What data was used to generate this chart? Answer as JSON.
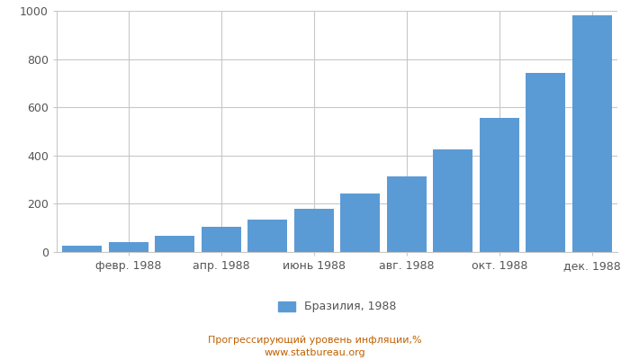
{
  "x_tick_labels": [
    "февр. 1988",
    "апр. 1988",
    "июнь 1988",
    "авг. 1988",
    "окт. 1988",
    "дек. 1988"
  ],
  "x_tick_positions": [
    1,
    3,
    5,
    7,
    9,
    11
  ],
  "values": [
    25,
    42,
    68,
    103,
    133,
    180,
    243,
    313,
    425,
    557,
    742,
    980
  ],
  "bar_color": "#5b9bd5",
  "ylim": [
    0,
    1000
  ],
  "yticks": [
    0,
    200,
    400,
    600,
    800,
    1000
  ],
  "legend_label": "Бразилия, 1988",
  "footer_line1": "Прогрессирующий уровень инфляции,%",
  "footer_line2": "www.statbureau.org",
  "background_color": "#ffffff",
  "grid_color": "#c8c8c8",
  "text_color": "#555555",
  "footer_color": "#c06000"
}
